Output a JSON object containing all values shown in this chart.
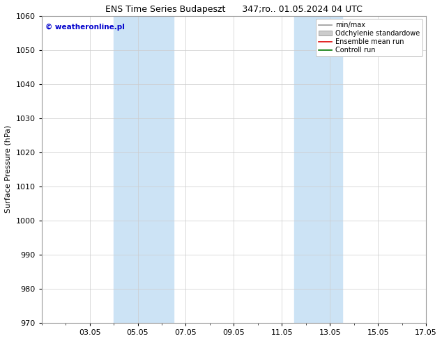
{
  "title": "ENS Time Series Budapeszt      347;ro.. 01.05.2024 04 UTC",
  "ylabel": "Surface Pressure (hPa)",
  "ylim": [
    970,
    1060
  ],
  "yticks": [
    970,
    980,
    990,
    1000,
    1010,
    1020,
    1030,
    1040,
    1050,
    1060
  ],
  "xtick_positions": [
    2,
    4,
    6,
    8,
    10,
    12,
    14,
    16
  ],
  "xtick_labels": [
    "03.05",
    "05.05",
    "07.05",
    "09.05",
    "11.05",
    "13.05",
    "15.05",
    "17.05"
  ],
  "xlim": [
    0,
    16
  ],
  "shade_regions": [
    {
      "xstart": 3.0,
      "xend": 5.5
    },
    {
      "xstart": 10.5,
      "xend": 12.5
    }
  ],
  "shade_color": "#cce3f5",
  "legend_entries": [
    {
      "label": "min/max",
      "color": "#999999",
      "lw": 1.2,
      "type": "line"
    },
    {
      "label": "Odchylenie standardowe",
      "color": "#cccccc",
      "type": "patch"
    },
    {
      "label": "Ensemble mean run",
      "color": "#dd0000",
      "lw": 1.2,
      "type": "line"
    },
    {
      "label": "Controll run",
      "color": "#007700",
      "lw": 1.2,
      "type": "line"
    }
  ],
  "watermark": "© weatheronline.pl",
  "watermark_color": "#0000cc",
  "background_color": "#ffffff",
  "grid_color": "#cccccc",
  "title_fontsize": 9,
  "ylabel_fontsize": 8,
  "tick_fontsize": 8,
  "legend_fontsize": 7,
  "watermark_fontsize": 7.5
}
